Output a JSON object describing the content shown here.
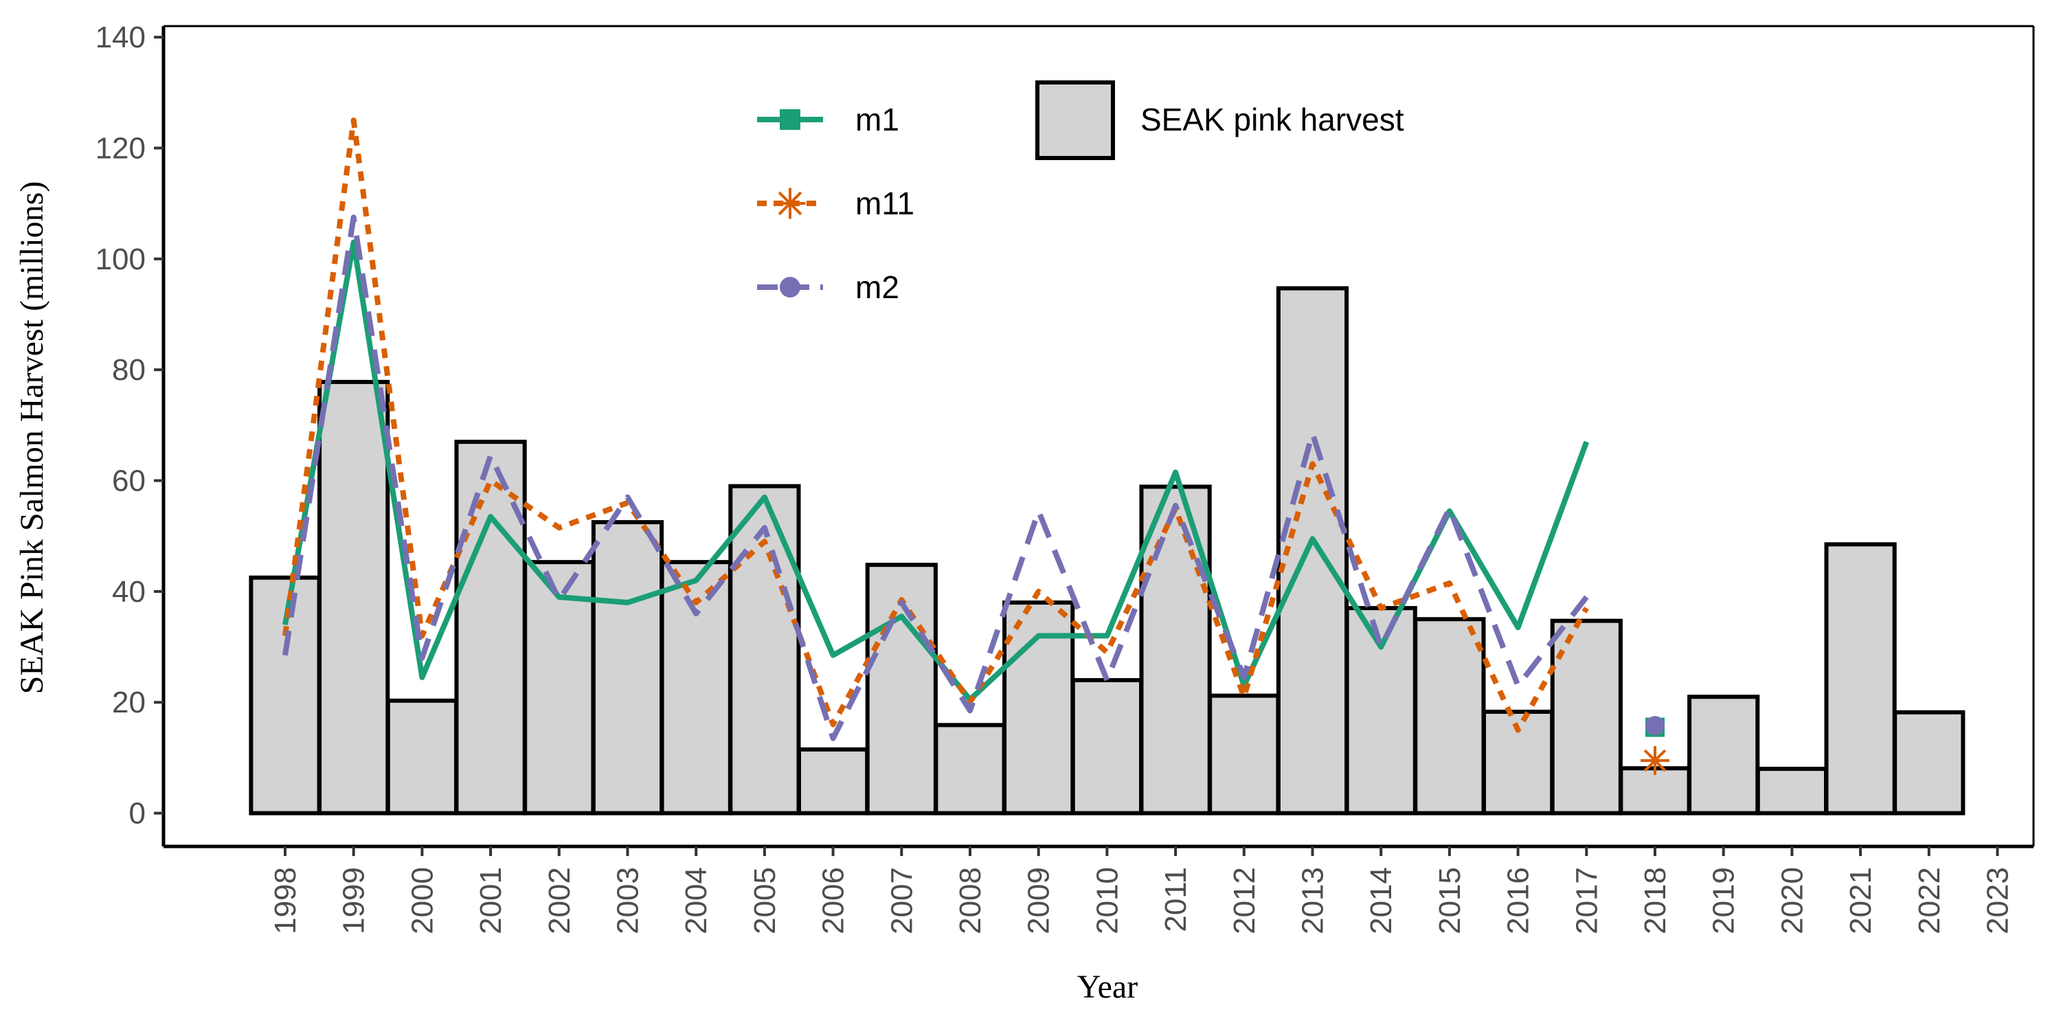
{
  "chart_data": {
    "type": "bar",
    "xlabel": "Year",
    "ylabel": "SEAK Pink Salmon Harvest (millions)",
    "ylim": [
      -6,
      142
    ],
    "yticks": [
      0,
      20,
      40,
      60,
      80,
      100,
      120,
      140
    ],
    "x_tick_labels": [
      "1998",
      "1999",
      "2000",
      "2001",
      "2002",
      "2003",
      "2004",
      "2005",
      "2006",
      "2007",
      "2008",
      "2009",
      "2010",
      "2011",
      "2012",
      "2013",
      "2014",
      "2015",
      "2016",
      "2017",
      "2018",
      "2019",
      "2020",
      "2021",
      "2022",
      "2023"
    ],
    "bars": {
      "name": "SEAK pink harvest",
      "color": "#d3d3d3",
      "categories": [
        "1998",
        "1999",
        "2000",
        "2001",
        "2002",
        "2003",
        "2004",
        "2005",
        "2006",
        "2007",
        "2008",
        "2009",
        "2010",
        "2011",
        "2012",
        "2013",
        "2014",
        "2015",
        "2016",
        "2017",
        "2018",
        "2019",
        "2020",
        "2021",
        "2022"
      ],
      "values": [
        42.5,
        77.8,
        20.3,
        67.0,
        45.3,
        52.5,
        45.3,
        59.0,
        11.5,
        44.8,
        15.9,
        38.0,
        24.0,
        58.9,
        21.2,
        94.7,
        37.0,
        35.0,
        18.3,
        34.7,
        8.1,
        21.0,
        8.0,
        48.5,
        18.2
      ]
    },
    "series": [
      {
        "name": "m1",
        "color": "#1b9e77",
        "style": "solid",
        "marker": "square",
        "x": [
          "1998",
          "1999",
          "2000",
          "2001",
          "2002",
          "2003",
          "2004",
          "2005",
          "2006",
          "2007",
          "2008",
          "2009",
          "2010",
          "2011",
          "2012",
          "2013",
          "2014",
          "2015",
          "2016",
          "2017"
        ],
        "values": [
          34,
          103,
          24.5,
          53.5,
          39,
          38,
          42,
          57,
          28.5,
          35.5,
          20.5,
          32,
          32,
          61.5,
          23,
          49.5,
          30,
          54.5,
          33.5,
          67
        ],
        "forecast": {
          "x": "2018",
          "value": 15.5
        }
      },
      {
        "name": "m11",
        "color": "#d95f02",
        "style": "dotted",
        "marker": "asterisk",
        "x": [
          "1998",
          "1999",
          "2000",
          "2001",
          "2002",
          "2003",
          "2004",
          "2005",
          "2006",
          "2007",
          "2008",
          "2009",
          "2010",
          "2011",
          "2012",
          "2013",
          "2014",
          "2015",
          "2016",
          "2017"
        ],
        "values": [
          32,
          125,
          32,
          60,
          51.5,
          56,
          38,
          49,
          16,
          38.5,
          20,
          40,
          29,
          55,
          21,
          63,
          37,
          41.5,
          15,
          37
        ],
        "forecast": {
          "x": "2018",
          "value": 9.5
        }
      },
      {
        "name": "m2",
        "color": "#7570b3",
        "style": "dashed",
        "marker": "circle",
        "x": [
          "1998",
          "1999",
          "2000",
          "2001",
          "2002",
          "2003",
          "2004",
          "2005",
          "2006",
          "2007",
          "2008",
          "2009",
          "2010",
          "2011",
          "2012",
          "2013",
          "2014",
          "2015",
          "2016",
          "2017"
        ],
        "values": [
          28.5,
          107.5,
          28,
          64.5,
          38.5,
          57,
          36,
          51.5,
          13.5,
          38,
          18.5,
          54.5,
          24,
          55.5,
          24.5,
          68.5,
          30,
          55,
          23,
          39
        ],
        "forecast": {
          "x": "2018",
          "value": 15.8
        }
      }
    ],
    "legend": {
      "placement": "top",
      "bar_label": "SEAK pink harvest"
    },
    "grid": false
  }
}
